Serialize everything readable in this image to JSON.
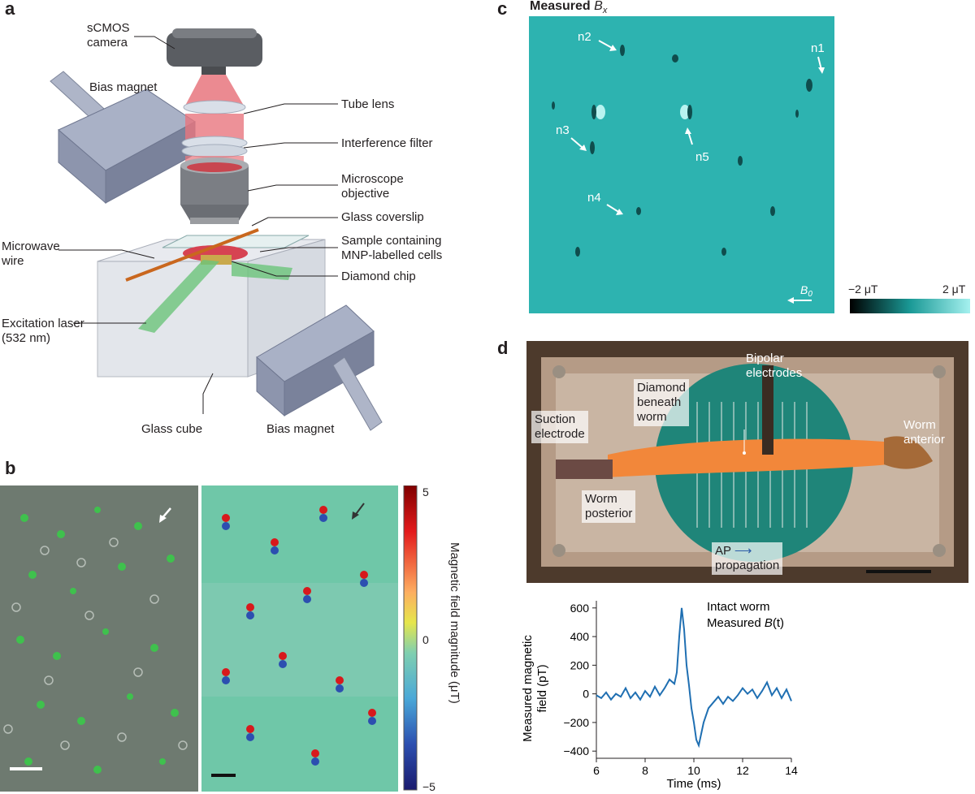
{
  "panel_a": {
    "letter": "a",
    "camera_line1": "sCMOS",
    "camera_line2": "camera",
    "bias_magnet_top": "Bias magnet",
    "tube_lens": "Tube lens",
    "interference_filter": "Interference filter",
    "objective_line1": "Microscope",
    "objective_line2": "objective",
    "coverslip": "Glass coverslip",
    "sample_line1": "Sample containing",
    "sample_line2": "MNP-labelled cells",
    "microwave_line1": "Microwave",
    "microwave_line2": "wire",
    "diamond_chip": "Diamond chip",
    "laser_line1": "Excitation laser",
    "laser_line2": "(532 nm)",
    "glass_cube": "Glass cube",
    "bias_magnet_bottom": "Bias magnet"
  },
  "panel_b": {
    "letter": "b",
    "colorbar_title": "Magnetic field magnitude (μT)",
    "colorbar_ticks": [
      "5",
      "0",
      "−5"
    ]
  },
  "panel_c": {
    "letter": "c",
    "title_prefix": "Measured ",
    "title_var": "B",
    "title_sub": "x",
    "neurons": [
      "n1",
      "n2",
      "n3",
      "n4",
      "n5"
    ],
    "b0_var": "B",
    "b0_sub": "0",
    "scale_min": "−2 μT",
    "scale_max": "2 μT"
  },
  "panel_d": {
    "letter": "d",
    "bipolar_line1": "Bipolar",
    "bipolar_line2": "electrodes",
    "diamond_line1": "Diamond",
    "diamond_line2": "beneath",
    "diamond_line3": "worm",
    "suction_line1": "Suction",
    "suction_line2": "electrode",
    "anterior_line1": "Worm",
    "anterior_line2": "anterior",
    "posterior_line1": "Worm",
    "posterior_line2": "posterior",
    "ap_line1": "AP",
    "ap_line2": "propagation"
  },
  "chart_data": {
    "type": "line",
    "title_line1": "Intact worm",
    "title_line2_prefix": "Measured ",
    "title_line2_var": "B",
    "title_line2_suffix": "(t)",
    "xlabel": "Time (ms)",
    "ylabel_line1": "Measured magnetic",
    "ylabel_line2": "field (pT)",
    "xlim": [
      6,
      14
    ],
    "ylim": [
      -450,
      650
    ],
    "xticks": [
      "6",
      "8",
      "10",
      "12",
      "14"
    ],
    "yticks": [
      "600",
      "400",
      "200",
      "0",
      "−200",
      "−400"
    ],
    "color": "#1f6fb2",
    "x": [
      6.0,
      6.2,
      6.4,
      6.6,
      6.8,
      7.0,
      7.2,
      7.4,
      7.6,
      7.8,
      8.0,
      8.2,
      8.4,
      8.6,
      8.8,
      9.0,
      9.2,
      9.3,
      9.4,
      9.5,
      9.6,
      9.7,
      9.8,
      9.9,
      10.0,
      10.1,
      10.2,
      10.3,
      10.4,
      10.6,
      10.8,
      11.0,
      11.2,
      11.4,
      11.6,
      11.8,
      12.0,
      12.2,
      12.4,
      12.6,
      12.8,
      13.0,
      13.2,
      13.4,
      13.6,
      13.8,
      14.0
    ],
    "y": [
      -10,
      -30,
      10,
      -40,
      0,
      -20,
      40,
      -30,
      10,
      -40,
      20,
      -20,
      50,
      -10,
      40,
      100,
      70,
      150,
      400,
      600,
      450,
      200,
      60,
      -100,
      -200,
      -320,
      -360,
      -280,
      -200,
      -100,
      -60,
      -20,
      -70,
      -20,
      -50,
      -10,
      40,
      0,
      30,
      -30,
      20,
      80,
      -10,
      40,
      -30,
      30,
      -50
    ]
  }
}
